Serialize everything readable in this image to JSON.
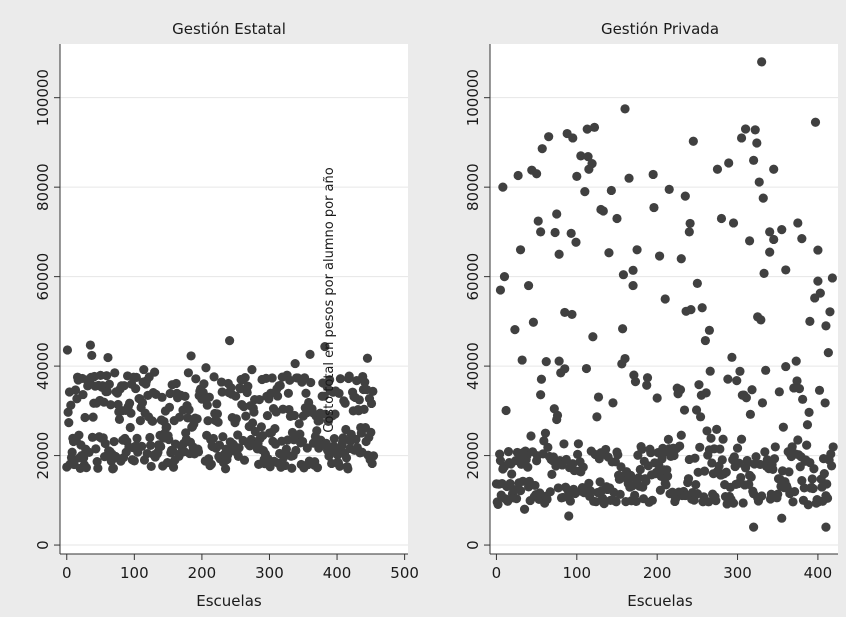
{
  "chart_data": {
    "type": "scatter",
    "ylabel": "Costo total en pesos por alumno por año",
    "marker_color": "#404040",
    "panel_background": "#ebebeb",
    "plot_background": "#ffffff",
    "grid": true,
    "panels": [
      {
        "title": "Gestión Estatal",
        "xlabel": "Escuelas",
        "xlim": [
          -10,
          505
        ],
        "ylim": [
          -2000,
          112000
        ],
        "x_ticks": [
          0,
          100,
          200,
          300,
          400,
          500
        ],
        "y_ticks": [
          0,
          20000,
          40000,
          60000,
          80000,
          100000
        ],
        "generator": {
          "n": 455,
          "seed": 7,
          "bands": [
            [
              17000,
              24000,
              0.45
            ],
            [
              24000,
              38000,
              0.5
            ],
            [
              38000,
              46000,
              0.05
            ]
          ]
        }
      },
      {
        "title": "Gestión Privada",
        "xlabel": "Escuelas",
        "xlim": [
          -8,
          425
        ],
        "ylim": [
          -2000,
          112000
        ],
        "x_ticks": [
          0,
          100,
          200,
          300,
          400
        ],
        "y_ticks": [
          0,
          20000,
          40000,
          60000,
          80000,
          100000
        ],
        "generator": {
          "n": 420,
          "seed": 13,
          "bands": [
            [
              9000,
              22000,
              0.72
            ],
            [
              22000,
              42000,
              0.16
            ],
            [
              42000,
              95000,
              0.12
            ]
          ]
        },
        "highlights": [
          [
            8,
            80000
          ],
          [
            10,
            60000
          ],
          [
            5,
            57000
          ],
          [
            30,
            66000
          ],
          [
            40,
            58000
          ],
          [
            50,
            83000
          ],
          [
            55,
            70000
          ],
          [
            62,
            41000
          ],
          [
            75,
            74000
          ],
          [
            78,
            65000
          ],
          [
            85,
            52000
          ],
          [
            95,
            91000
          ],
          [
            105,
            87000
          ],
          [
            110,
            79000
          ],
          [
            115,
            84000
          ],
          [
            130,
            75000
          ],
          [
            150,
            73000
          ],
          [
            160,
            97500
          ],
          [
            165,
            82000
          ],
          [
            170,
            58000
          ],
          [
            175,
            66000
          ],
          [
            210,
            55000
          ],
          [
            215,
            79500
          ],
          [
            230,
            64000
          ],
          [
            235,
            78000
          ],
          [
            240,
            70000
          ],
          [
            250,
            58500
          ],
          [
            265,
            48000
          ],
          [
            275,
            84000
          ],
          [
            280,
            73000
          ],
          [
            295,
            72000
          ],
          [
            305,
            91000
          ],
          [
            310,
            93000
          ],
          [
            315,
            68000
          ],
          [
            320,
            86000
          ],
          [
            325,
            51000
          ],
          [
            330,
            108000
          ],
          [
            340,
            70000
          ],
          [
            345,
            84000
          ],
          [
            355,
            70500
          ],
          [
            360,
            61500
          ],
          [
            375,
            72000
          ],
          [
            380,
            68500
          ],
          [
            390,
            50000
          ],
          [
            400,
            59000
          ],
          [
            410,
            49000
          ],
          [
            320,
            4000
          ],
          [
            355,
            6000
          ],
          [
            410,
            4000
          ],
          [
            35,
            8000
          ],
          [
            90,
            6500
          ]
        ]
      }
    ]
  }
}
